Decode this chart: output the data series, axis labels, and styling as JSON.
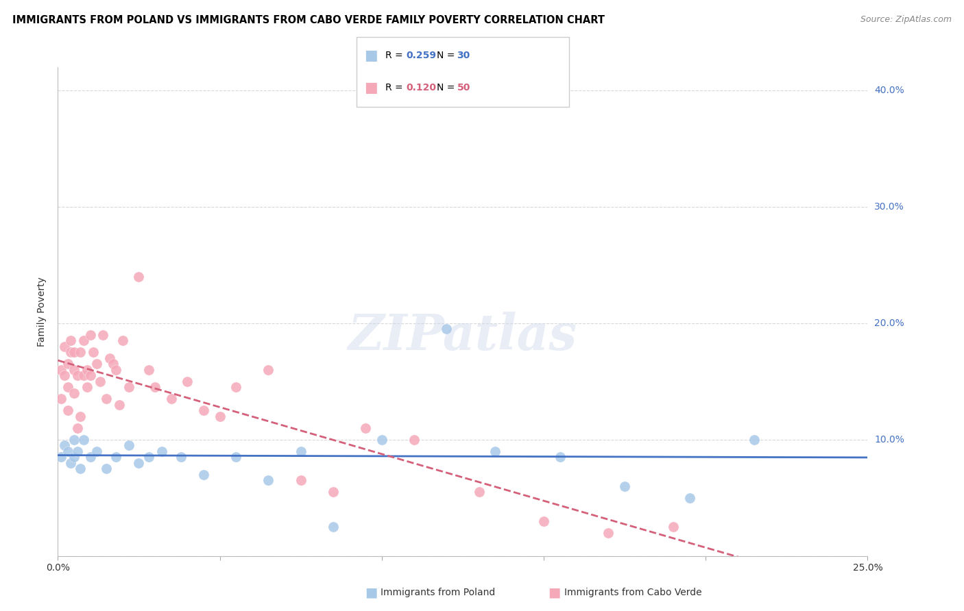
{
  "title": "IMMIGRANTS FROM POLAND VS IMMIGRANTS FROM CABO VERDE FAMILY POVERTY CORRELATION CHART",
  "source": "Source: ZipAtlas.com",
  "ylabel": "Family Poverty",
  "yticks": [
    0.0,
    0.1,
    0.2,
    0.3,
    0.4
  ],
  "ytick_labels": [
    "",
    "10.0%",
    "20.0%",
    "30.0%",
    "40.0%"
  ],
  "xlim": [
    0.0,
    0.25
  ],
  "ylim": [
    0.0,
    0.42
  ],
  "legend1_R": "0.259",
  "legend1_N": "30",
  "legend2_R": "0.120",
  "legend2_N": "50",
  "poland_color": "#a8c8e8",
  "cabo_verde_color": "#f5a8b8",
  "poland_line_color": "#4472c4",
  "cabo_verde_line_color": "#d4607a",
  "axis_label_color": "#4472c4",
  "poland_scatter_x": [
    0.001,
    0.002,
    0.003,
    0.004,
    0.005,
    0.005,
    0.006,
    0.007,
    0.008,
    0.01,
    0.012,
    0.015,
    0.018,
    0.022,
    0.025,
    0.028,
    0.032,
    0.038,
    0.045,
    0.055,
    0.065,
    0.075,
    0.085,
    0.1,
    0.12,
    0.135,
    0.155,
    0.175,
    0.195,
    0.215
  ],
  "poland_scatter_y": [
    0.085,
    0.095,
    0.09,
    0.08,
    0.1,
    0.085,
    0.09,
    0.075,
    0.1,
    0.085,
    0.09,
    0.075,
    0.085,
    0.095,
    0.08,
    0.085,
    0.09,
    0.085,
    0.07,
    0.085,
    0.065,
    0.09,
    0.025,
    0.1,
    0.195,
    0.09,
    0.085,
    0.06,
    0.05,
    0.1
  ],
  "cabo_verde_scatter_x": [
    0.001,
    0.001,
    0.002,
    0.002,
    0.003,
    0.003,
    0.003,
    0.004,
    0.004,
    0.005,
    0.005,
    0.005,
    0.006,
    0.006,
    0.007,
    0.007,
    0.008,
    0.008,
    0.009,
    0.009,
    0.01,
    0.01,
    0.011,
    0.012,
    0.013,
    0.014,
    0.015,
    0.016,
    0.017,
    0.018,
    0.019,
    0.02,
    0.022,
    0.025,
    0.028,
    0.03,
    0.035,
    0.04,
    0.045,
    0.05,
    0.055,
    0.065,
    0.075,
    0.085,
    0.095,
    0.11,
    0.13,
    0.15,
    0.17,
    0.19
  ],
  "cabo_verde_scatter_y": [
    0.135,
    0.16,
    0.155,
    0.18,
    0.145,
    0.165,
    0.125,
    0.175,
    0.185,
    0.14,
    0.16,
    0.175,
    0.11,
    0.155,
    0.12,
    0.175,
    0.155,
    0.185,
    0.145,
    0.16,
    0.155,
    0.19,
    0.175,
    0.165,
    0.15,
    0.19,
    0.135,
    0.17,
    0.165,
    0.16,
    0.13,
    0.185,
    0.145,
    0.24,
    0.16,
    0.145,
    0.135,
    0.15,
    0.125,
    0.12,
    0.145,
    0.16,
    0.065,
    0.055,
    0.11,
    0.1,
    0.055,
    0.03,
    0.02,
    0.025
  ],
  "background_color": "#ffffff",
  "grid_color": "#d8d8d8"
}
